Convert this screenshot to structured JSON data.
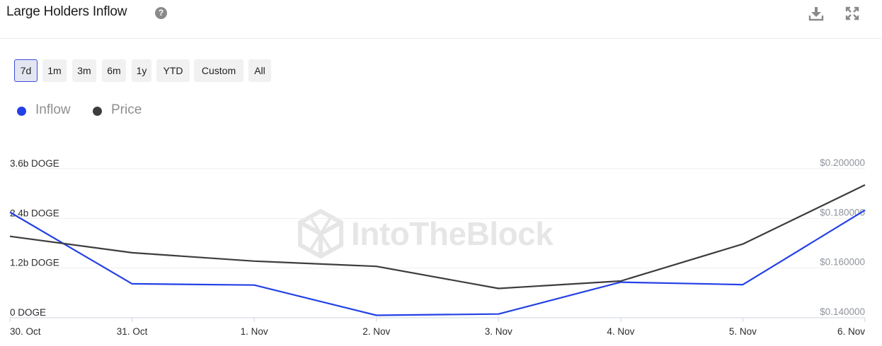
{
  "header": {
    "title": "Large Holders Inflow",
    "help_glyph": "?",
    "icons": [
      "help-icon",
      "download-icon",
      "expand-icon"
    ]
  },
  "range_buttons": [
    {
      "label": "7d",
      "active": true
    },
    {
      "label": "1m",
      "active": false
    },
    {
      "label": "3m",
      "active": false
    },
    {
      "label": "6m",
      "active": false
    },
    {
      "label": "1y",
      "active": false
    },
    {
      "label": "YTD",
      "active": false
    },
    {
      "label": "Custom",
      "active": false
    },
    {
      "label": "All",
      "active": false
    }
  ],
  "legend": [
    {
      "label": "Inflow",
      "color": "#2340e6"
    },
    {
      "label": "Price",
      "color": "#3d3d40"
    }
  ],
  "watermark": "IntoTheBlock",
  "colors": {
    "inflow": "#2340e6",
    "price": "#3d3d40",
    "grid": "#eeeeee",
    "axis_text": "#8f949d"
  },
  "chart_data": {
    "type": "line",
    "categories": [
      "30. Oct",
      "31. Oct",
      "1. Nov",
      "2. Nov",
      "3. Nov",
      "4. Nov",
      "5. Nov",
      "6. Nov"
    ],
    "series": [
      {
        "name": "Inflow",
        "axis": "left",
        "unit": "DOGE",
        "values": [
          2.55,
          0.82,
          0.79,
          0.06,
          0.09,
          0.86,
          0.8,
          2.6
        ]
      },
      {
        "name": "Price",
        "axis": "right",
        "unit": "USD",
        "values": [
          0.1728,
          0.1662,
          0.1628,
          0.1607,
          0.1518,
          0.1548,
          0.1697,
          0.1935
        ]
      }
    ],
    "y_left": {
      "ticks": [
        "0 DOGE",
        "1.2b DOGE",
        "2.4b DOGE",
        "3.6b DOGE"
      ],
      "tick_values": [
        0,
        1.2,
        2.4,
        3.6
      ],
      "range": [
        0,
        3.6
      ]
    },
    "y_right": {
      "ticks": [
        "$0.140000",
        "$0.160000",
        "$0.180000",
        "$0.200000"
      ],
      "tick_values": [
        0.14,
        0.16,
        0.18,
        0.2
      ],
      "range": [
        0.14,
        0.2
      ]
    },
    "grid": true,
    "legend_position": "top-left"
  }
}
